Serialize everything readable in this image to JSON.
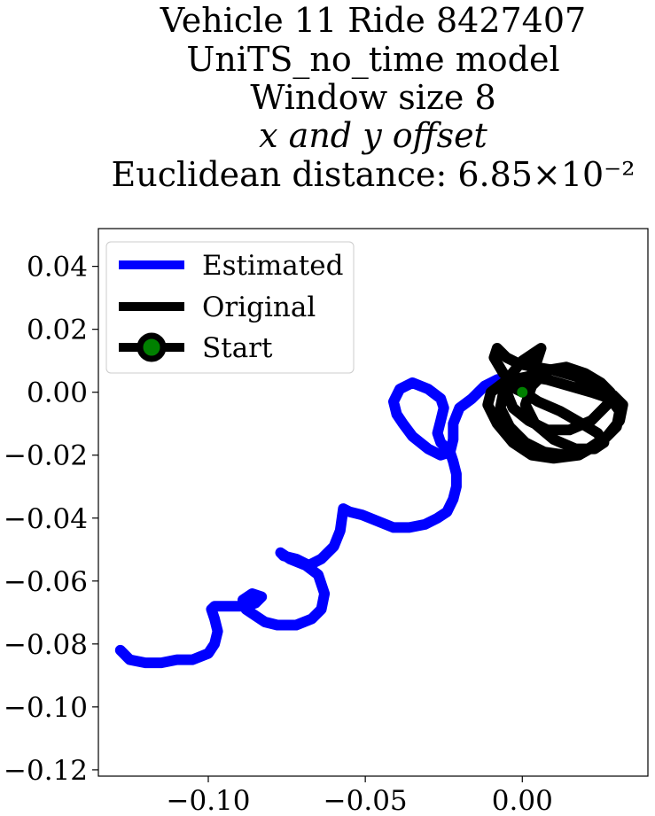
{
  "chart_data": {
    "type": "line",
    "title_lines": [
      "Vehicle 11 Ride 8427407",
      "UniTS_no_time model",
      "Window size 8",
      "x and y offset",
      "Euclidean distance: 6.85×10⁻²"
    ],
    "xlabel": "",
    "ylabel": "",
    "xlim": [
      -0.135,
      0.04
    ],
    "ylim": [
      -0.122,
      0.052
    ],
    "xticks": [
      -0.1,
      -0.05,
      0.0
    ],
    "xtick_labels": [
      "−0.10",
      "−0.05",
      "0.00"
    ],
    "yticks": [
      0.04,
      0.02,
      0.0,
      -0.02,
      -0.04,
      -0.06,
      -0.08,
      -0.1,
      -0.12
    ],
    "ytick_labels": [
      "0.04",
      "0.02",
      "0.00",
      "−0.02",
      "−0.04",
      "−0.06",
      "−0.08",
      "−0.10",
      "−0.12"
    ],
    "grid": false,
    "legend_position": "top-left",
    "legend": [
      "Estimated",
      "Original",
      "Start"
    ],
    "series": [
      {
        "name": "Estimated",
        "color": "#0000ff",
        "x": [
          -0.128,
          -0.125,
          -0.12,
          -0.115,
          -0.11,
          -0.105,
          -0.1,
          -0.098,
          -0.097,
          -0.098,
          -0.099,
          -0.098,
          -0.093,
          -0.088,
          -0.085,
          -0.083,
          -0.086,
          -0.089,
          -0.088,
          -0.085,
          -0.082,
          -0.078,
          -0.072,
          -0.067,
          -0.064,
          -0.063,
          -0.065,
          -0.069,
          -0.074,
          -0.077,
          -0.076,
          -0.072,
          -0.068,
          -0.064,
          -0.06,
          -0.058,
          -0.057,
          -0.055,
          -0.051,
          -0.046,
          -0.041,
          -0.036,
          -0.031,
          -0.027,
          -0.024,
          -0.022,
          -0.021,
          -0.021,
          -0.022,
          -0.023,
          -0.026,
          -0.027,
          -0.026,
          -0.025,
          -0.026,
          -0.03,
          -0.035,
          -0.039,
          -0.041,
          -0.04,
          -0.038,
          -0.035,
          -0.03,
          -0.026,
          -0.023,
          -0.022,
          -0.022,
          -0.02,
          -0.016,
          -0.012,
          -0.008,
          -0.004,
          0.0
        ],
        "y": [
          -0.082,
          -0.085,
          -0.086,
          -0.086,
          -0.085,
          -0.085,
          -0.083,
          -0.08,
          -0.076,
          -0.072,
          -0.069,
          -0.068,
          -0.068,
          -0.068,
          -0.067,
          -0.065,
          -0.064,
          -0.066,
          -0.069,
          -0.071,
          -0.073,
          -0.074,
          -0.074,
          -0.072,
          -0.069,
          -0.064,
          -0.058,
          -0.055,
          -0.053,
          -0.051,
          -0.052,
          -0.053,
          -0.055,
          -0.053,
          -0.049,
          -0.044,
          -0.037,
          -0.038,
          -0.039,
          -0.041,
          -0.043,
          -0.043,
          -0.042,
          -0.04,
          -0.038,
          -0.034,
          -0.03,
          -0.026,
          -0.022,
          -0.019,
          -0.016,
          -0.013,
          -0.009,
          -0.005,
          -0.002,
          0.001,
          0.003,
          0.001,
          -0.003,
          -0.007,
          -0.01,
          -0.014,
          -0.018,
          -0.02,
          -0.019,
          -0.015,
          -0.01,
          -0.005,
          -0.002,
          0.002,
          0.004,
          0.005,
          0.004
        ]
      },
      {
        "name": "Original",
        "color": "#000000",
        "x": [
          0.0,
          -0.006,
          -0.01,
          -0.011,
          -0.008,
          -0.003,
          0.003,
          0.01,
          0.018,
          0.025,
          0.03,
          0.031,
          0.028,
          0.022,
          0.015,
          0.008,
          0.002,
          -0.003,
          -0.006,
          -0.007,
          -0.004,
          0.001,
          0.007,
          0.014,
          0.021,
          0.027,
          0.031,
          0.032,
          0.029,
          0.024,
          0.017,
          0.01,
          0.004,
          -0.001,
          -0.005,
          -0.008,
          -0.009,
          -0.006,
          -0.001,
          0.005,
          0.012,
          0.019,
          0.024,
          0.026,
          0.023,
          0.017,
          0.01,
          0.004,
          0.001,
          0.003,
          0.008,
          0.014,
          0.02,
          0.025,
          0.028,
          0.027,
          0.022,
          0.015,
          0.008,
          0.002,
          -0.003,
          -0.005,
          -0.004,
          0.0,
          0.006,
          0.004,
          0.0
        ],
        "y": [
          0.0,
          0.003,
          0.0,
          -0.004,
          -0.01,
          -0.016,
          -0.02,
          -0.021,
          -0.02,
          -0.016,
          -0.011,
          -0.006,
          -0.002,
          0.0,
          0.002,
          0.004,
          0.005,
          0.004,
          0.0,
          -0.005,
          -0.011,
          -0.016,
          -0.019,
          -0.02,
          -0.018,
          -0.014,
          -0.009,
          -0.004,
          -0.001,
          0.002,
          0.005,
          0.007,
          0.008,
          0.009,
          0.011,
          0.014,
          0.011,
          0.006,
          0.001,
          -0.003,
          -0.006,
          -0.01,
          -0.013,
          -0.016,
          -0.018,
          -0.018,
          -0.015,
          -0.01,
          -0.004,
          0.002,
          0.007,
          0.008,
          0.006,
          0.003,
          0.0,
          -0.004,
          -0.009,
          -0.012,
          -0.012,
          -0.009,
          -0.005,
          0.0,
          0.005,
          0.01,
          0.014,
          0.008,
          0.0
        ]
      }
    ],
    "start_point": {
      "name": "Start",
      "x": 0.0,
      "y": 0.0,
      "fill": "#008000",
      "edge": "#000000"
    }
  }
}
